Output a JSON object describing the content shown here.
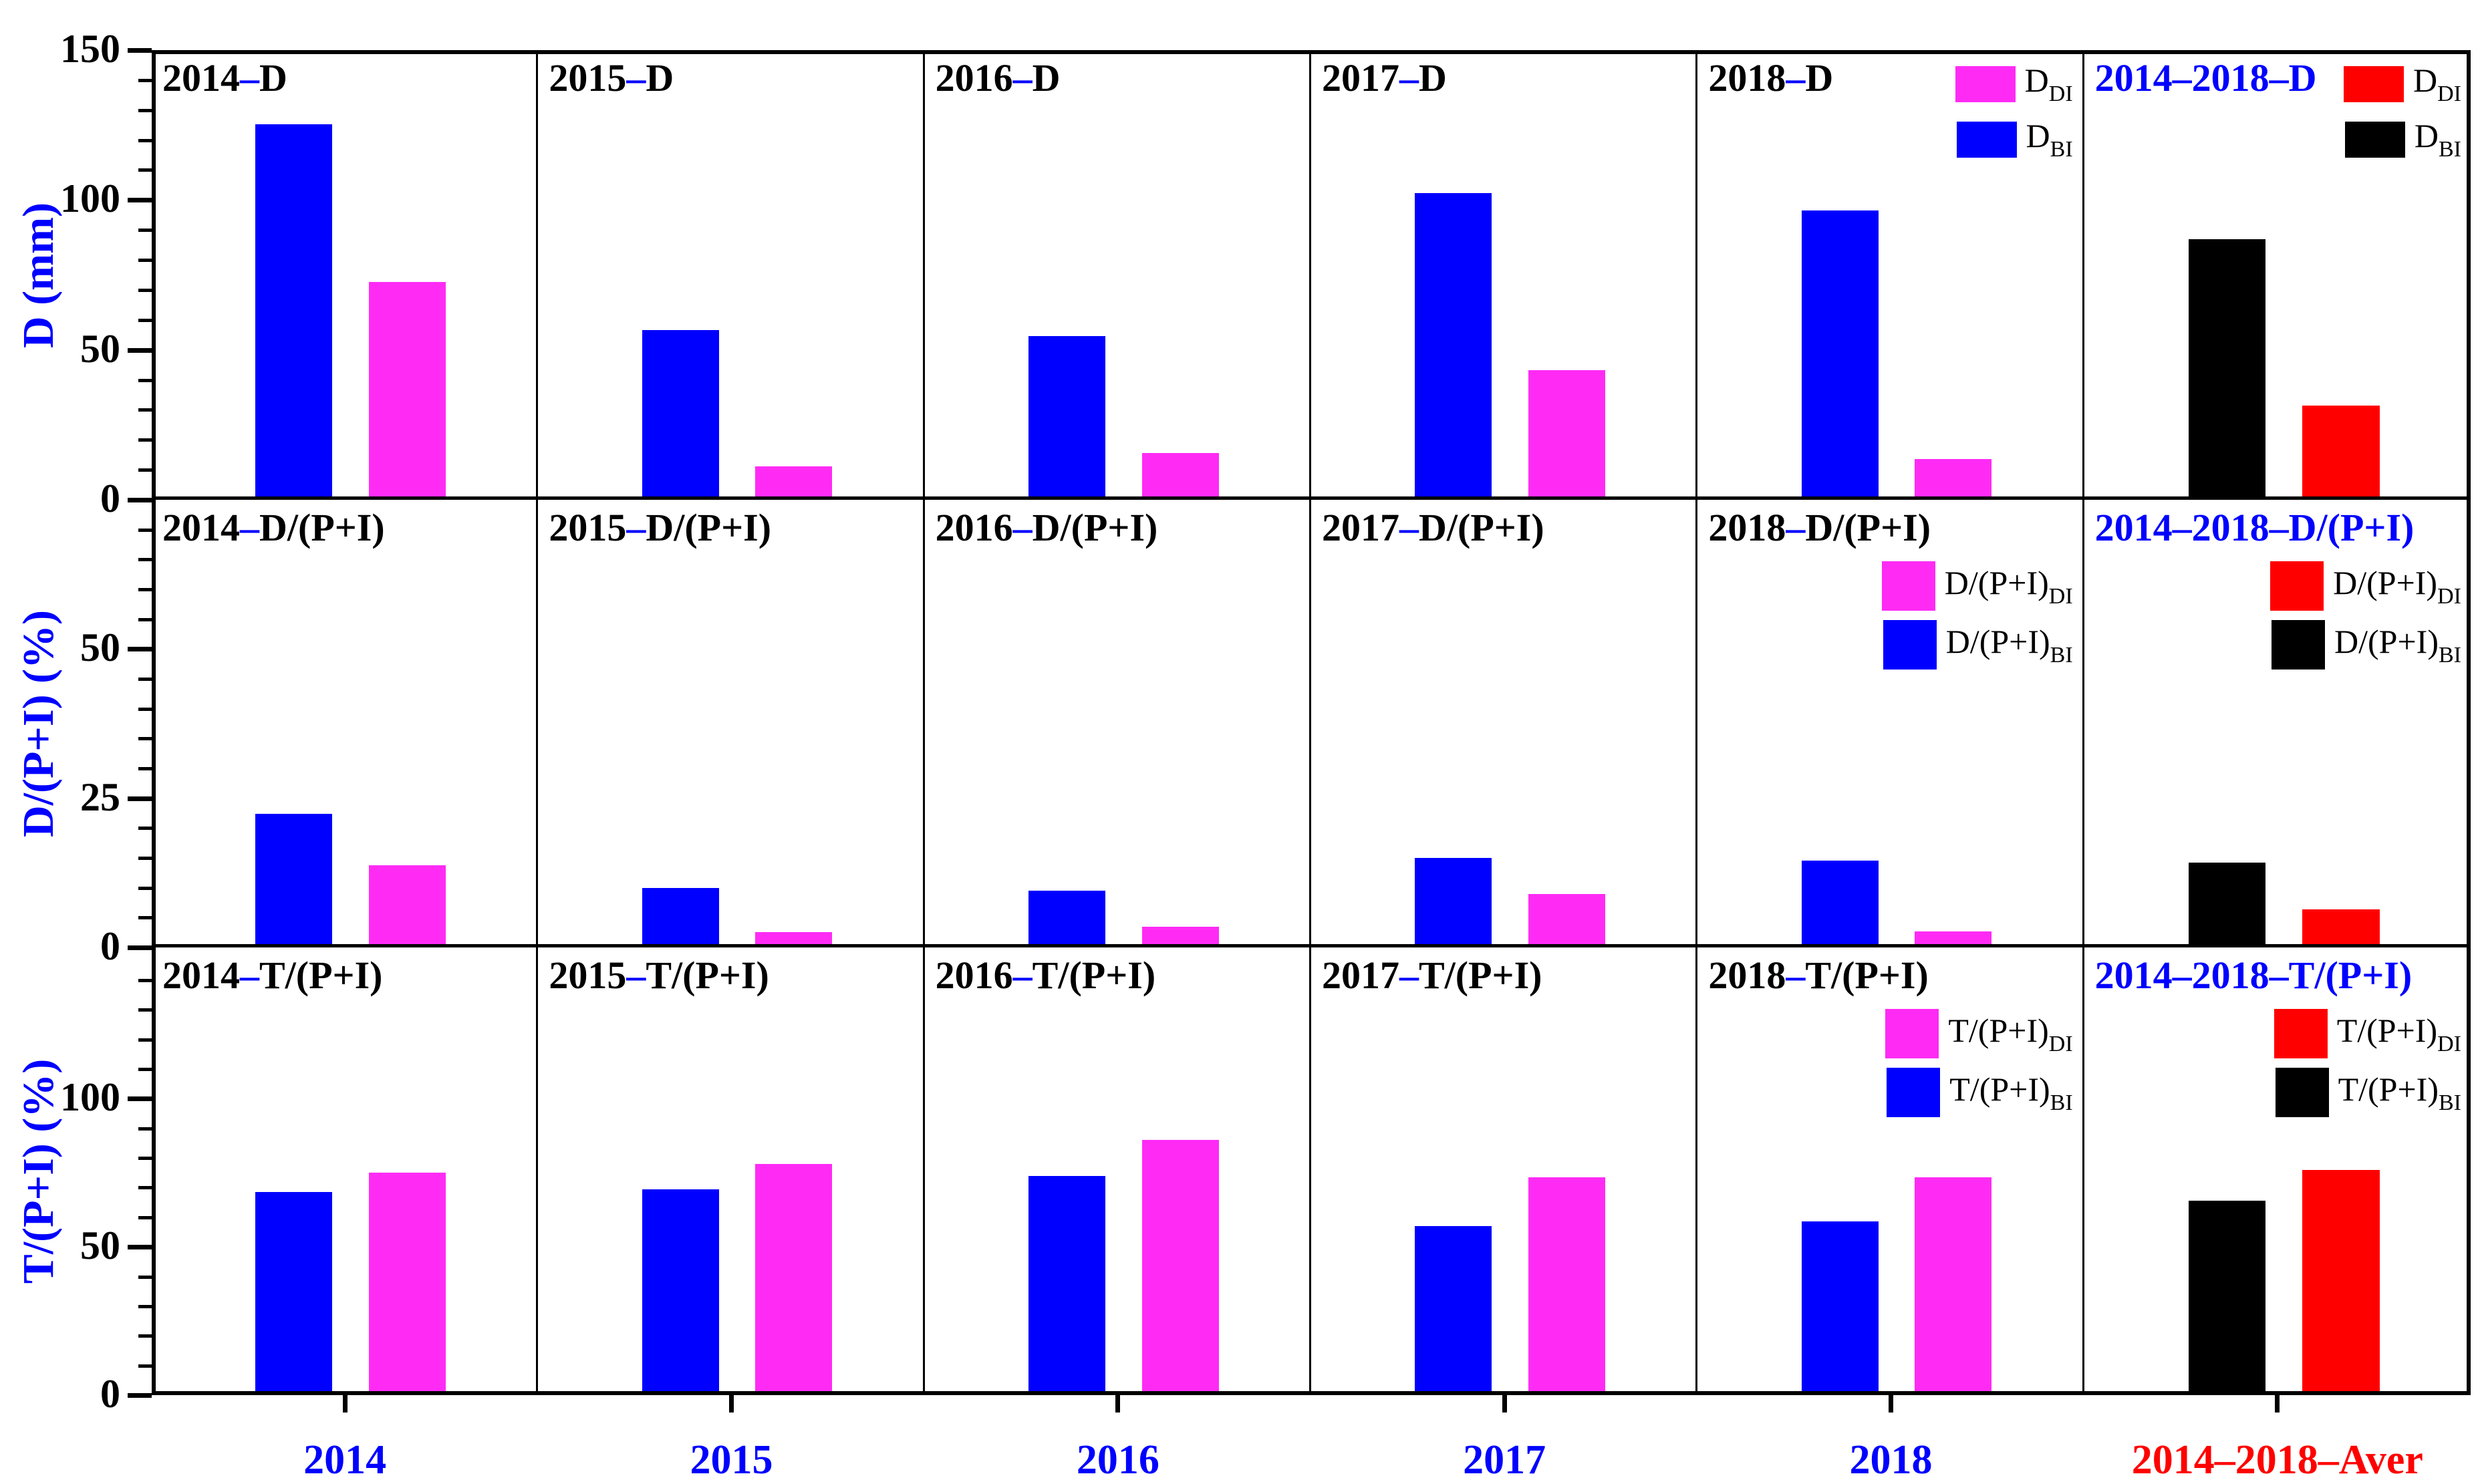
{
  "figure": {
    "dash": "–",
    "colors": {
      "bi": "#0000FF",
      "di": "#FF2BF5",
      "bi_aver": "#000000",
      "di_aver": "#FF0000",
      "year_label": "#0000FF",
      "aver_label": "#FF0000",
      "title_text": "#000000",
      "title_dash": "#0000FF",
      "title_aver": "#0000FF",
      "axis_label": "#0000FF"
    },
    "x_labels": [
      "2014",
      "2015",
      "2016",
      "2017",
      "2018",
      "2014–2018–Aver"
    ]
  },
  "chart_data": [
    {
      "type": "bar",
      "title_suffix": "D",
      "title_last": "2014–2018–D",
      "ylabel": "D (mm)",
      "ylim": [
        0,
        150
      ],
      "major_ticks": [
        0,
        50,
        100,
        150
      ],
      "minor_step": 10,
      "grid": false,
      "legend_position": "top-right of last two panels",
      "categories": [
        "2014",
        "2015",
        "2016",
        "2017",
        "2018",
        "2014–2018"
      ],
      "series": [
        {
          "name": "D_BI",
          "values": [
            125,
            56,
            54,
            102,
            96,
            86.5
          ]
        },
        {
          "name": "D_DI",
          "values": [
            72,
            10,
            14.5,
            42.5,
            12.5,
            30.5
          ]
        }
      ],
      "legend": {
        "di": {
          "base": "D",
          "sub": "DI"
        },
        "bi": {
          "base": "D",
          "sub": "BI"
        }
      }
    },
    {
      "type": "bar",
      "title_suffix": "D/(P+I)",
      "title_last": "2014–2018–D/(P+I)",
      "ylabel": "D/(P+I) (%)",
      "ylim": [
        0,
        75
      ],
      "major_ticks": [
        0,
        25,
        50
      ],
      "minor_step": 5,
      "grid": false,
      "legend_position": "upper-right of last two panels",
      "categories": [
        "2014",
        "2015",
        "2016",
        "2017",
        "2018",
        "2014–2018"
      ],
      "series": [
        {
          "name": "D/(P+I)_BI",
          "values": [
            22,
            9.5,
            9,
            14.6,
            14.1,
            13.8
          ]
        },
        {
          "name": "D/(P+I)_DI",
          "values": [
            13.3,
            2,
            2.9,
            8.5,
            2.1,
            5.9
          ]
        }
      ],
      "legend": {
        "di": {
          "base": "D/(P+I)",
          "sub": "DI"
        },
        "bi": {
          "base": "D/(P+I)",
          "sub": "BI"
        }
      }
    },
    {
      "type": "bar",
      "title_suffix": "T/(P+I)",
      "title_last": "2014–2018–T/(P+I)",
      "ylabel": "T/(P+I) (%)",
      "ylim": [
        0,
        151
      ],
      "major_ticks": [
        0,
        50,
        100
      ],
      "minor_step": 10,
      "grid": false,
      "legend_position": "upper-right of last two panels",
      "categories": [
        "2014",
        "2015",
        "2016",
        "2017",
        "2018",
        "2014–2018"
      ],
      "series": [
        {
          "name": "T/(P+I)_BI",
          "values": [
            68.5,
            69.5,
            74,
            57,
            58.5,
            65.5
          ]
        },
        {
          "name": "T/(P+I)_DI",
          "values": [
            75,
            78,
            86,
            73.5,
            73.5,
            76
          ]
        }
      ],
      "legend": {
        "di": {
          "base": "T/(P+I)",
          "sub": "DI"
        },
        "bi": {
          "base": "T/(P+I)",
          "sub": "BI"
        }
      }
    }
  ]
}
